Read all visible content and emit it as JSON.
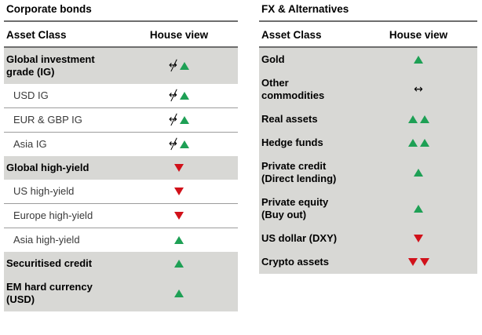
{
  "colors": {
    "shaded_bg": "#d8d8d5",
    "up_green": "#1ea055",
    "down_red": "#d1111a",
    "rule_dark": "#6e6e6e",
    "rule_light": "#9c9c9c",
    "text_regular": "#3a3a3a",
    "text_bold": "#000000"
  },
  "icon_legend": {
    "up": "up-triangle-icon",
    "down": "down-triangle-icon",
    "neutral": "neutral-arrow-icon",
    "crossed_neutral": "crossed-neutral-arrow-icon"
  },
  "tables": [
    {
      "title": "Corporate bonds",
      "columns": {
        "asset": "Asset Class",
        "view": "House view"
      },
      "rows": [
        {
          "asset": "Global investment\ngrade (IG)",
          "bold": true,
          "shaded": true,
          "view": [
            "crossed_neutral",
            "up"
          ]
        },
        {
          "asset": "USD IG",
          "indent": true,
          "divider_after": true,
          "view": [
            "crossed_neutral",
            "up"
          ]
        },
        {
          "asset": "EUR & GBP IG",
          "indent": true,
          "divider_after": true,
          "view": [
            "crossed_neutral",
            "up"
          ]
        },
        {
          "asset": "Asia IG",
          "indent": true,
          "view": [
            "crossed_neutral",
            "up"
          ]
        },
        {
          "asset": "Global high-yield",
          "bold": true,
          "shaded": true,
          "view": [
            "down"
          ]
        },
        {
          "asset": "US high-yield",
          "indent": true,
          "divider_after": true,
          "view": [
            "down"
          ]
        },
        {
          "asset": "Europe high-yield",
          "indent": true,
          "divider_after": true,
          "view": [
            "down"
          ]
        },
        {
          "asset": "Asia high-yield",
          "indent": true,
          "view": [
            "up"
          ]
        },
        {
          "asset": "Securitised credit",
          "bold": true,
          "shaded": true,
          "view": [
            "up"
          ]
        },
        {
          "asset": "EM hard currency\n(USD)",
          "bold": true,
          "shaded": true,
          "view": [
            "up"
          ]
        }
      ]
    },
    {
      "title": "FX & Alternatives",
      "columns": {
        "asset": "Asset Class",
        "view": "House view"
      },
      "rows": [
        {
          "asset": "Gold",
          "bold": true,
          "shaded": true,
          "view": [
            "up"
          ]
        },
        {
          "asset": "Other\ncommodities",
          "bold": true,
          "shaded": true,
          "view": [
            "neutral"
          ]
        },
        {
          "asset": "Real assets",
          "bold": true,
          "shaded": true,
          "view": [
            "up",
            "up"
          ]
        },
        {
          "asset": "Hedge funds",
          "bold": true,
          "shaded": true,
          "view": [
            "up",
            "up"
          ]
        },
        {
          "asset": "Private credit\n(Direct lending)",
          "bold": true,
          "shaded": true,
          "view": [
            "up"
          ]
        },
        {
          "asset": "Private equity\n(Buy out)",
          "bold": true,
          "shaded": true,
          "view": [
            "up"
          ]
        },
        {
          "asset": "US dollar (DXY)",
          "bold": true,
          "shaded": true,
          "view": [
            "down"
          ]
        },
        {
          "asset": "Crypto assets",
          "bold": true,
          "shaded": true,
          "view": [
            "down",
            "down"
          ]
        }
      ]
    }
  ]
}
